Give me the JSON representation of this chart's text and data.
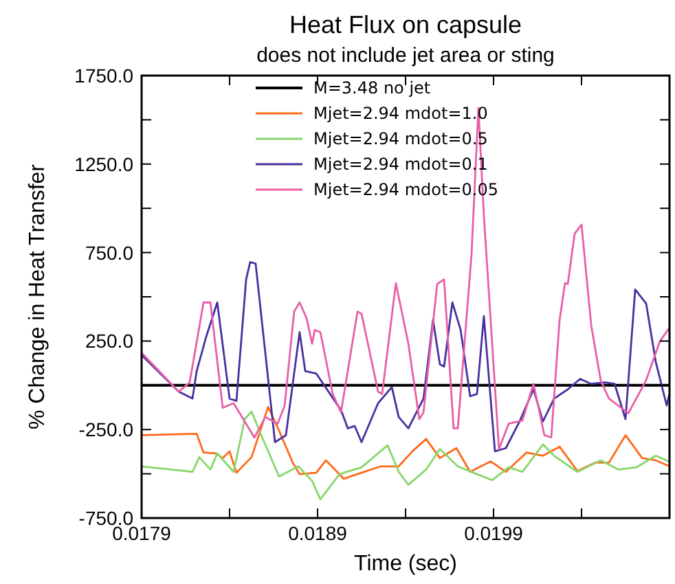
{
  "chart_data": {
    "type": "line",
    "title": "Heat Flux on capsule",
    "subtitle": "does not include jet area or sting",
    "xlabel": "Time (sec)",
    "ylabel": "% Change in Heat Transfer",
    "xlim": [
      0.0179,
      0.0209
    ],
    "xticks": [
      {
        "value": 0.0179,
        "label": "0.0179"
      },
      {
        "value": 0.0184,
        "label": null
      },
      {
        "value": 0.0189,
        "label": "0.0189"
      },
      {
        "value": 0.0194,
        "label": null
      },
      {
        "value": 0.0199,
        "label": "0.0199"
      },
      {
        "value": 0.0204,
        "label": null
      },
      {
        "value": 0.0209,
        "label": null
      }
    ],
    "ylim": [
      -750,
      1750
    ],
    "yticks": [
      {
        "value": -750,
        "label": "-750.0"
      },
      {
        "value": -500,
        "label": null
      },
      {
        "value": -250,
        "label": "-250.0"
      },
      {
        "value": 0,
        "label": null
      },
      {
        "value": 250,
        "label": "250.0"
      },
      {
        "value": 500,
        "label": null
      },
      {
        "value": 750,
        "label": "750.0"
      },
      {
        "value": 1000,
        "label": null
      },
      {
        "value": 1250,
        "label": "1250.0"
      },
      {
        "value": 1500,
        "label": null
      },
      {
        "value": 1750,
        "label": "1750.0"
      }
    ],
    "grid": false,
    "legend": "top",
    "line_style": "solid",
    "marker": "none",
    "series": [
      {
        "name": "M=3.48 no jet",
        "color": "#000000",
        "x": [
          0.0179,
          0.0209
        ],
        "values": [
          0,
          0
        ]
      },
      {
        "name": "Mjet=2.94 mdot=1.0",
        "color": "#ff6a1a",
        "x": [
          0.0179,
          0.018213,
          0.018252,
          0.018322,
          0.018361,
          0.0184,
          0.018439,
          0.018525,
          0.018619,
          0.018681,
          0.018759,
          0.018798,
          0.018892,
          0.018947,
          0.018986,
          0.019048,
          0.01915,
          0.019259,
          0.019361,
          0.019439,
          0.019517,
          0.019595,
          0.019689,
          0.019767,
          0.019884,
          0.01997,
          0.020088,
          0.020181,
          0.020275,
          0.020377,
          0.020478,
          0.020556,
          0.02065,
          0.020744,
          0.020822,
          0.0209
        ],
        "values": [
          -282,
          -274,
          -380,
          -385,
          -411,
          -373,
          -494,
          -406,
          -122,
          -256,
          -437,
          -502,
          -494,
          -424,
          -463,
          -528,
          -494,
          -458,
          -458,
          -373,
          -303,
          -411,
          -355,
          -489,
          -430,
          -489,
          -380,
          -398,
          -347,
          -484,
          -437,
          -437,
          -282,
          -411,
          -424,
          -458
        ]
      },
      {
        "name": "Mjet=2.94 mdot=0.5",
        "color": "#88d66a",
        "x": [
          0.0179,
          0.018189,
          0.018228,
          0.018291,
          0.01833,
          0.018423,
          0.018486,
          0.018525,
          0.01858,
          0.018681,
          0.018791,
          0.018869,
          0.018916,
          0.019025,
          0.01915,
          0.019298,
          0.019361,
          0.019416,
          0.019517,
          0.019595,
          0.019697,
          0.019806,
          0.019892,
          0.019986,
          0.020064,
          0.020181,
          0.020244,
          0.020377,
          0.020509,
          0.020611,
          0.020713,
          0.020822,
          0.0209
        ],
        "values": [
          -458,
          -489,
          -406,
          -476,
          -385,
          -489,
          -192,
          -148,
          -282,
          -515,
          -458,
          -541,
          -644,
          -502,
          -463,
          -339,
          -489,
          -562,
          -476,
          -360,
          -458,
          -502,
          -536,
          -463,
          -489,
          -334,
          -398,
          -489,
          -424,
          -476,
          -463,
          -398,
          -432
        ]
      },
      {
        "name": "Mjet=2.94 mdot=0.1",
        "color": "#4a2fa0",
        "x": [
          0.0179,
          0.018111,
          0.018189,
          0.018213,
          0.018267,
          0.01833,
          0.0184,
          0.018439,
          0.018494,
          0.018517,
          0.018548,
          0.018658,
          0.01872,
          0.018798,
          0.01883,
          0.018892,
          0.019033,
          0.019072,
          0.019111,
          0.01915,
          0.019244,
          0.019322,
          0.019361,
          0.019416,
          0.019502,
          0.019556,
          0.019595,
          0.019619,
          0.019666,
          0.019713,
          0.019767,
          0.019806,
          0.019845,
          0.019908,
          0.01997,
          0.020048,
          0.020127,
          0.020181,
          0.020244,
          0.020322,
          0.020392,
          0.020455,
          0.020533,
          0.020588,
          0.02065,
          0.020705,
          0.020767,
          0.020822,
          0.020884,
          0.0209
        ],
        "values": [
          171,
          -36,
          -75,
          80,
          274,
          468,
          -75,
          -88,
          598,
          696,
          688,
          -321,
          -282,
          300,
          80,
          67,
          -140,
          -243,
          -230,
          -321,
          -101,
          -10,
          -179,
          -243,
          -75,
          370,
          119,
          106,
          468,
          313,
          -62,
          -49,
          391,
          -373,
          -355,
          -204,
          -23,
          -204,
          -75,
          -23,
          36,
          8,
          16,
          8,
          -191,
          541,
          463,
          132,
          -114,
          -49
        ]
      },
      {
        "name": "Mjet=2.94 mdot=0.05",
        "color": "#e85fa8",
        "x": [
          0.0179,
          0.018111,
          0.018173,
          0.018252,
          0.018291,
          0.018361,
          0.018423,
          0.018541,
          0.018603,
          0.018673,
          0.018713,
          0.018767,
          0.018798,
          0.018838,
          0.018869,
          0.018884,
          0.018916,
          0.018986,
          0.019033,
          0.019127,
          0.01915,
          0.019244,
          0.019267,
          0.019345,
          0.019416,
          0.019478,
          0.019502,
          0.01958,
          0.019619,
          0.019673,
          0.019697,
          0.019775,
          0.019814,
          0.019845,
          0.019931,
          0.019986,
          0.020064,
          0.020127,
          0.020189,
          0.020228,
          0.020275,
          0.020306,
          0.020322,
          0.020361,
          0.0204,
          0.020455,
          0.020509,
          0.020556,
          0.020666,
          0.020767,
          0.020845,
          0.0209
        ],
        "values": [
          184,
          -36,
          16,
          468,
          468,
          -127,
          -101,
          -295,
          -179,
          -217,
          -114,
          417,
          468,
          378,
          235,
          313,
          300,
          -49,
          -153,
          417,
          404,
          -36,
          -49,
          577,
          235,
          -191,
          -153,
          572,
          598,
          -243,
          -243,
          740,
          1568,
          960,
          -360,
          -217,
          -199,
          8,
          -282,
          -295,
          365,
          577,
          572,
          857,
          908,
          339,
          28,
          -75,
          -158,
          28,
          248,
          326
        ]
      }
    ]
  }
}
